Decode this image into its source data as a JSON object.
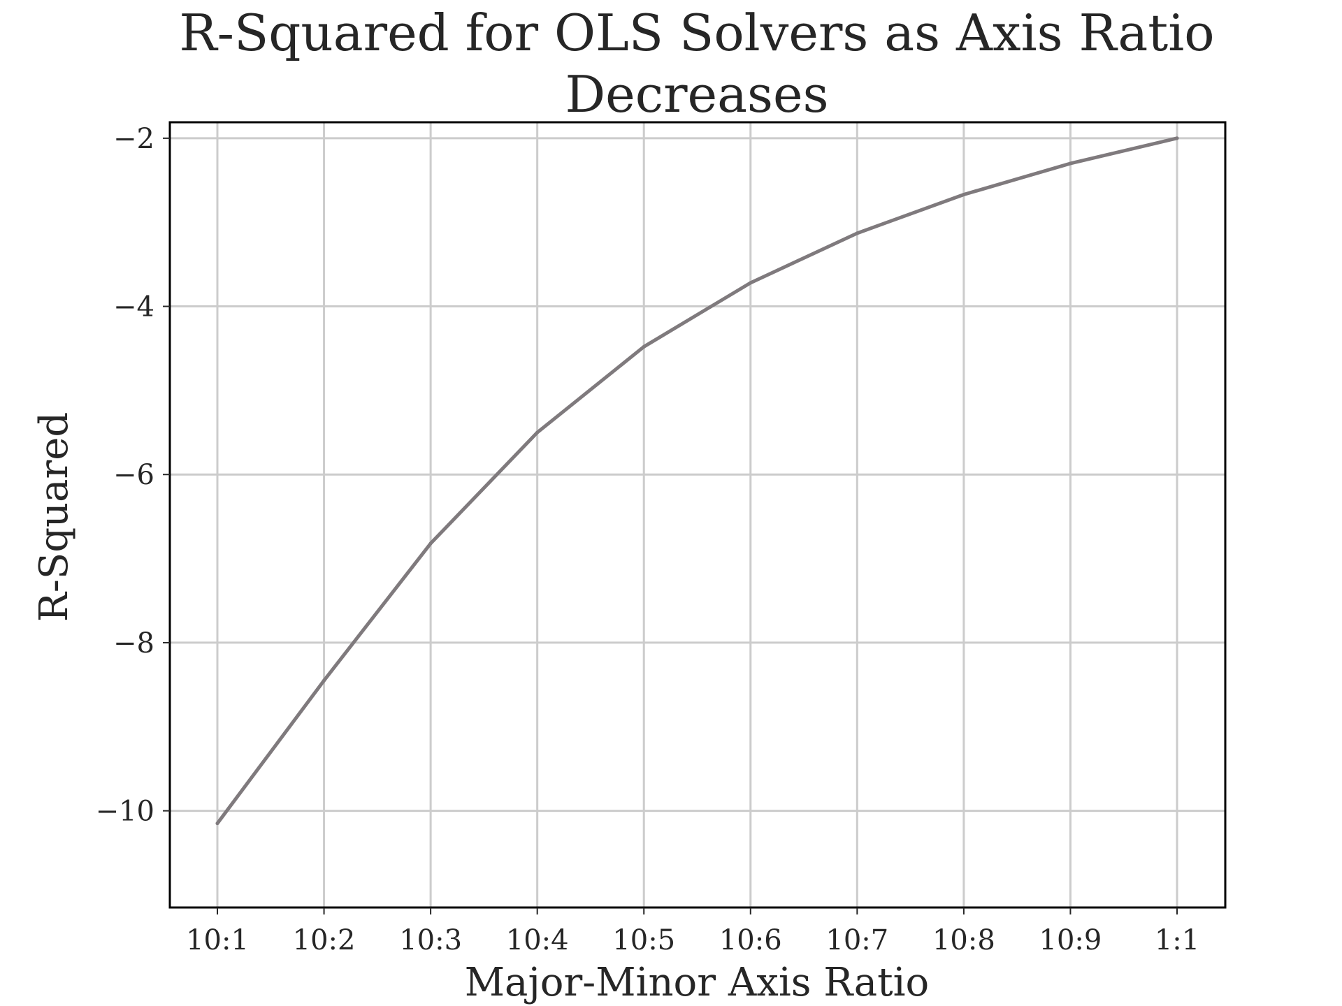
{
  "chart_data": {
    "type": "line",
    "title_lines": [
      "R-Squared for OLS Solvers as Axis Ratio",
      "Decreases"
    ],
    "xlabel": "Major-Minor Axis Ratio",
    "ylabel": "R-Squared",
    "categories": [
      "10:1",
      "10:2",
      "10:3",
      "10:4",
      "10:5",
      "10:6",
      "10:7",
      "10:8",
      "10:9",
      "1:1"
    ],
    "series": [
      {
        "values": [
          -10.15,
          -8.45,
          -6.82,
          -5.5,
          -4.48,
          -3.72,
          -3.13,
          -2.67,
          -2.3,
          -2.0
        ],
        "color": "#7f7a7d"
      }
    ],
    "ylim": [
      -11.15,
      -1.81
    ],
    "yticks": [
      -10,
      -8,
      -6,
      -4,
      -2
    ],
    "ytick_labels": [
      "−10",
      "−8",
      "−6",
      "−4",
      "−2"
    ],
    "grid": true,
    "legend": "none"
  }
}
